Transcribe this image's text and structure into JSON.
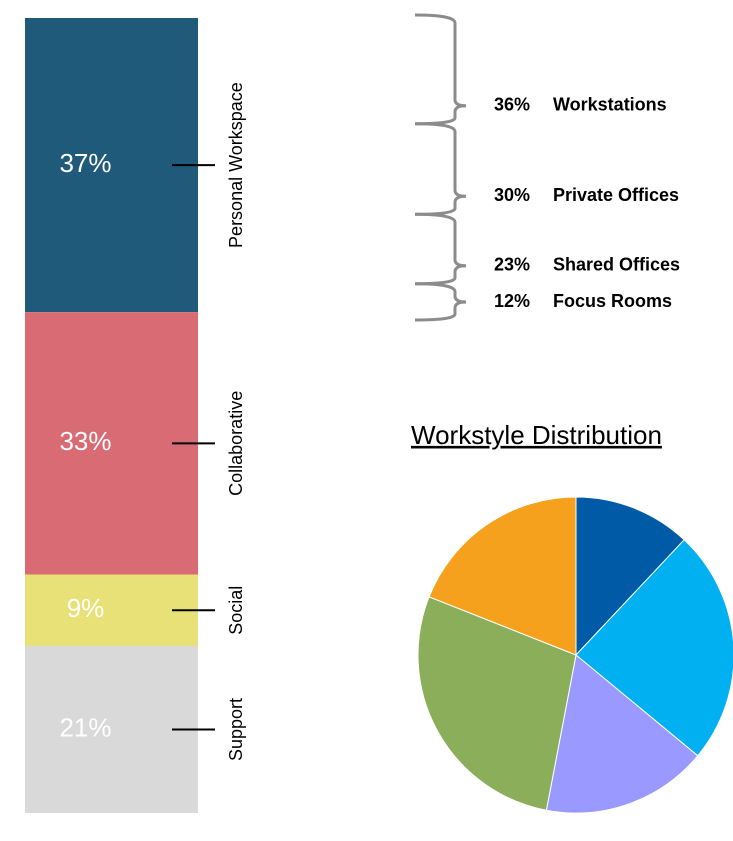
{
  "chart_data": [
    {
      "type": "stacked-column",
      "categories": [
        "Personal Workspace",
        "Collaborative",
        "Social",
        "Support"
      ],
      "values": [
        37,
        33,
        9,
        21
      ],
      "value_labels": [
        "37%",
        "33%",
        "9%",
        "21%"
      ],
      "colors": [
        "#1f5a7a",
        "#d96b75",
        "#e8e178",
        "#d9d9d9"
      ]
    },
    {
      "type": "bracket",
      "categories": [
        "Workstations",
        "Private Offices",
        "Shared Offices",
        "Focus Rooms"
      ],
      "values": [
        36,
        30,
        23,
        12
      ],
      "value_labels": [
        "36%",
        "30%",
        "23%",
        "12%"
      ],
      "color": "#8c8c8c"
    },
    {
      "type": "pie",
      "title": "Workstyle Distribution",
      "values": [
        12,
        24,
        17,
        28,
        19
      ],
      "colors": [
        "#005aa6",
        "#00b0f0",
        "#9999ff",
        "#8aae5a",
        "#f5a11d"
      ]
    }
  ]
}
